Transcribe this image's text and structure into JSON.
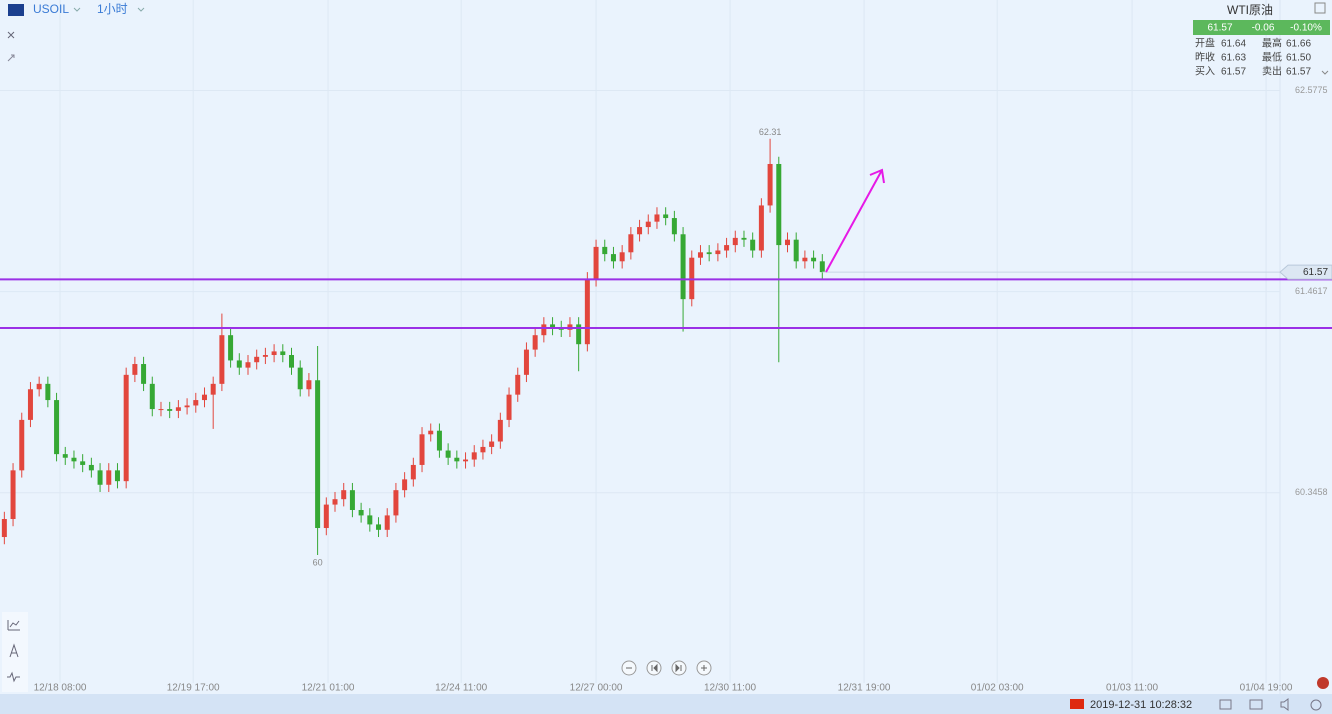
{
  "toolbar": {
    "symbol": "USOIL",
    "interval": "1小时"
  },
  "quote": {
    "name": "WTI原油",
    "last": "61.57",
    "change": "-0.06",
    "change_pct": "-0.10%",
    "rows": [
      [
        "开盘",
        "61.64",
        "最高",
        "61.66"
      ],
      [
        "昨收",
        "61.63",
        "最低",
        "61.50"
      ],
      [
        "买入",
        "61.57",
        "卖出",
        "61.57"
      ]
    ]
  },
  "chart_data": {
    "type": "candlestick",
    "open": [
      60.1,
      60.2,
      60.47,
      60.75,
      60.92,
      60.95,
      60.86,
      60.56,
      60.54,
      60.52,
      60.5,
      60.47,
      60.39,
      60.47,
      60.41,
      61.0,
      61.06,
      60.95,
      60.81,
      60.81,
      60.8,
      60.82,
      60.83,
      60.86,
      60.89,
      60.95,
      61.22,
      61.08,
      61.04,
      61.07,
      61.1,
      61.11,
      61.13,
      61.11,
      61.04,
      60.92,
      60.97,
      60.15,
      60.28,
      60.31,
      60.36,
      60.25,
      60.22,
      60.17,
      60.14,
      60.22,
      60.36,
      60.42,
      60.5,
      60.67,
      60.69,
      60.58,
      60.54,
      60.52,
      60.53,
      60.57,
      60.6,
      60.63,
      60.75,
      60.89,
      61.0,
      61.14,
      61.22,
      61.28,
      61.26,
      61.25,
      61.28,
      61.17,
      61.53,
      61.71,
      61.67,
      61.63,
      61.68,
      61.78,
      61.82,
      61.85,
      61.89,
      61.87,
      61.78,
      61.42,
      61.65,
      61.68,
      61.67,
      61.69,
      61.72,
      61.76,
      61.75,
      61.69,
      61.94,
      62.17,
      61.72,
      61.75,
      61.63,
      61.65,
      61.63
    ],
    "high": [
      60.24,
      60.51,
      60.79,
      60.96,
      60.99,
      60.99,
      60.9,
      60.6,
      60.58,
      60.56,
      60.54,
      60.51,
      60.51,
      60.51,
      61.04,
      61.1,
      61.1,
      60.99,
      60.85,
      60.85,
      60.86,
      60.87,
      60.9,
      60.93,
      60.99,
      61.34,
      61.26,
      61.12,
      61.11,
      61.14,
      61.15,
      61.17,
      61.17,
      61.15,
      61.08,
      61.01,
      61.16,
      60.32,
      60.35,
      60.4,
      60.4,
      60.29,
      60.26,
      60.21,
      60.26,
      60.4,
      60.46,
      60.54,
      60.71,
      60.73,
      60.73,
      60.62,
      60.58,
      60.57,
      60.61,
      60.64,
      60.67,
      60.79,
      60.93,
      61.04,
      61.18,
      61.26,
      61.32,
      61.32,
      61.3,
      61.32,
      61.32,
      61.57,
      61.75,
      61.75,
      61.71,
      61.72,
      61.82,
      61.86,
      61.89,
      61.93,
      61.93,
      61.91,
      61.82,
      61.69,
      61.72,
      61.72,
      61.73,
      61.76,
      61.8,
      61.8,
      61.79,
      61.98,
      62.31,
      62.21,
      61.79,
      61.79,
      61.69,
      61.69,
      61.67
    ],
    "low": [
      60.06,
      60.16,
      60.43,
      60.71,
      60.88,
      60.82,
      60.52,
      60.5,
      60.48,
      60.46,
      60.43,
      60.35,
      60.35,
      60.37,
      60.37,
      60.96,
      60.91,
      60.77,
      60.77,
      60.76,
      60.76,
      60.78,
      60.79,
      60.82,
      60.7,
      60.91,
      61.04,
      61.0,
      61.0,
      61.03,
      61.06,
      61.07,
      61.07,
      61.0,
      60.88,
      60.88,
      60.0,
      60.11,
      60.24,
      60.27,
      60.21,
      60.18,
      60.13,
      60.1,
      60.1,
      60.18,
      60.32,
      60.38,
      60.46,
      60.63,
      60.54,
      60.5,
      60.48,
      60.48,
      60.49,
      60.53,
      60.56,
      60.59,
      60.71,
      60.85,
      60.96,
      61.1,
      61.18,
      61.22,
      61.21,
      61.21,
      61.02,
      61.13,
      61.49,
      61.63,
      61.59,
      61.59,
      61.64,
      61.74,
      61.78,
      61.81,
      61.83,
      61.74,
      61.24,
      61.38,
      61.61,
      61.63,
      61.63,
      61.65,
      61.68,
      61.71,
      61.65,
      61.65,
      61.9,
      61.07,
      61.68,
      61.59,
      61.59,
      61.59,
      61.53
    ],
    "close": [
      60.2,
      60.47,
      60.75,
      60.92,
      60.95,
      60.86,
      60.56,
      60.54,
      60.52,
      60.5,
      60.47,
      60.39,
      60.47,
      60.41,
      61.0,
      61.06,
      60.95,
      60.81,
      60.81,
      60.8,
      60.82,
      60.83,
      60.86,
      60.89,
      60.95,
      61.22,
      61.08,
      61.04,
      61.07,
      61.1,
      61.11,
      61.13,
      61.11,
      61.04,
      60.92,
      60.97,
      60.15,
      60.28,
      60.31,
      60.36,
      60.25,
      60.22,
      60.17,
      60.14,
      60.22,
      60.36,
      60.42,
      60.5,
      60.67,
      60.69,
      60.58,
      60.54,
      60.52,
      60.53,
      60.57,
      60.6,
      60.63,
      60.75,
      60.89,
      61.0,
      61.14,
      61.22,
      61.28,
      61.26,
      61.25,
      61.28,
      61.17,
      61.53,
      61.71,
      61.67,
      61.63,
      61.68,
      61.78,
      61.82,
      61.85,
      61.89,
      61.87,
      61.78,
      61.42,
      61.65,
      61.68,
      61.67,
      61.69,
      61.72,
      61.76,
      61.75,
      61.69,
      61.94,
      62.17,
      61.72,
      61.75,
      61.63,
      61.65,
      61.63,
      61.57
    ],
    "colors": {
      "up": "#e2463d",
      "down": "#36a834"
    },
    "xlim": [
      -0.5,
      146.6
    ],
    "xticks": [
      {
        "value": 6.4,
        "label": "12/18 08:00"
      },
      {
        "value": 21.7,
        "label": "12/19 17:00"
      },
      {
        "value": 37.2,
        "label": "12/21 01:00"
      },
      {
        "value": 52.5,
        "label": "12/24 11:00"
      },
      {
        "value": 68.0,
        "label": "12/27 00:00"
      },
      {
        "value": 83.4,
        "label": "12/30 11:00"
      },
      {
        "value": 98.8,
        "label": "12/31 19:00"
      },
      {
        "value": 114.1,
        "label": "01/02 03:00"
      },
      {
        "value": 129.6,
        "label": "01/03 11:00"
      },
      {
        "value": 145.0,
        "label": "01/04 19:00"
      }
    ],
    "ylim": [
      59.29,
      63.08
    ],
    "yticks": [
      62.5775,
      61.4617,
      60.3458
    ],
    "grid": true,
    "high_marker": 62.31,
    "low_marker": 60,
    "last_price": 61.57,
    "hlines": [
      {
        "value": 61.53,
        "color": "#9b30e6"
      },
      {
        "value": 61.26,
        "color": "#9b30e6"
      }
    ]
  },
  "status_bar": {
    "datetime": "2019-12-31 10:28:32"
  }
}
